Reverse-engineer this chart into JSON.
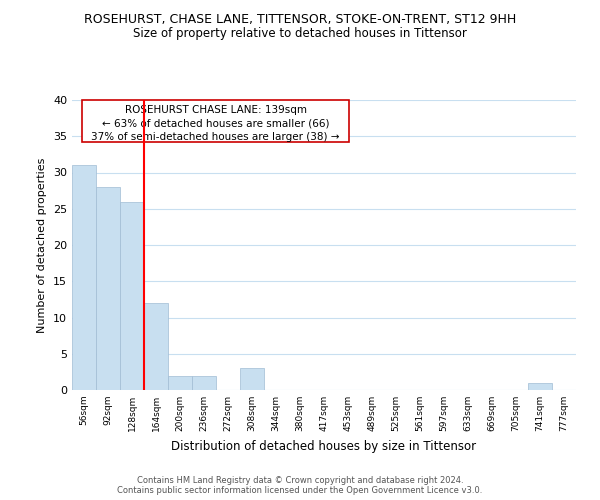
{
  "title": "ROSEHURST, CHASE LANE, TITTENSOR, STOKE-ON-TRENT, ST12 9HH",
  "subtitle": "Size of property relative to detached houses in Tittensor",
  "xlabel": "Distribution of detached houses by size in Tittensor",
  "ylabel": "Number of detached properties",
  "bin_labels": [
    "56sqm",
    "92sqm",
    "128sqm",
    "164sqm",
    "200sqm",
    "236sqm",
    "272sqm",
    "308sqm",
    "344sqm",
    "380sqm",
    "417sqm",
    "453sqm",
    "489sqm",
    "525sqm",
    "561sqm",
    "597sqm",
    "633sqm",
    "669sqm",
    "705sqm",
    "741sqm",
    "777sqm"
  ],
  "bar_heights": [
    31,
    28,
    26,
    12,
    2,
    2,
    0,
    3,
    0,
    0,
    0,
    0,
    0,
    0,
    0,
    0,
    0,
    0,
    0,
    1,
    0
  ],
  "bar_color": "#c8dff0",
  "bar_edge_color": "#a0bcd4",
  "vline_x_index": 2,
  "vline_color": "red",
  "ylim": [
    0,
    40
  ],
  "annotation_text_line1": "ROSEHURST CHASE LANE: 139sqm",
  "annotation_text_line2": "← 63% of detached houses are smaller (66)",
  "annotation_text_line3": "37% of semi-detached houses are larger (38) →",
  "footer_line1": "Contains HM Land Registry data © Crown copyright and database right 2024.",
  "footer_line2": "Contains public sector information licensed under the Open Government Licence v3.0.",
  "background_color": "#ffffff",
  "grid_color": "#c8dff0"
}
